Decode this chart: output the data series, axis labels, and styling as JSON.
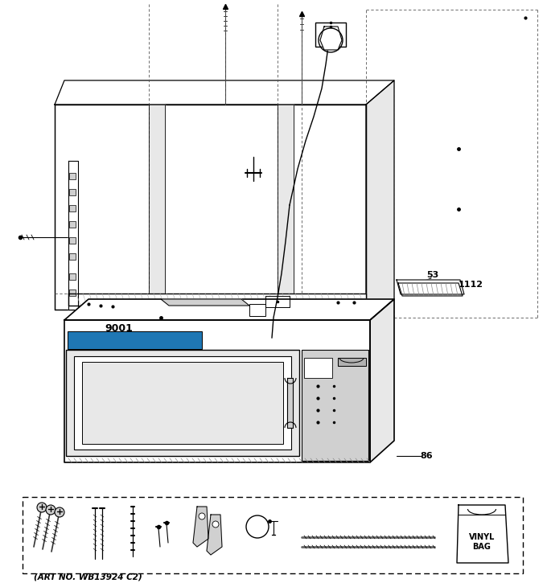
{
  "bg": "#ffffff",
  "lc": "#000000",
  "gray1": "#e8e8e8",
  "gray2": "#d0d0d0",
  "gray3": "#b0b0b0",
  "art_no": "(ART NO. WB13924 C2)",
  "fig_w": 6.8,
  "fig_h": 7.25,
  "dpi": 100
}
